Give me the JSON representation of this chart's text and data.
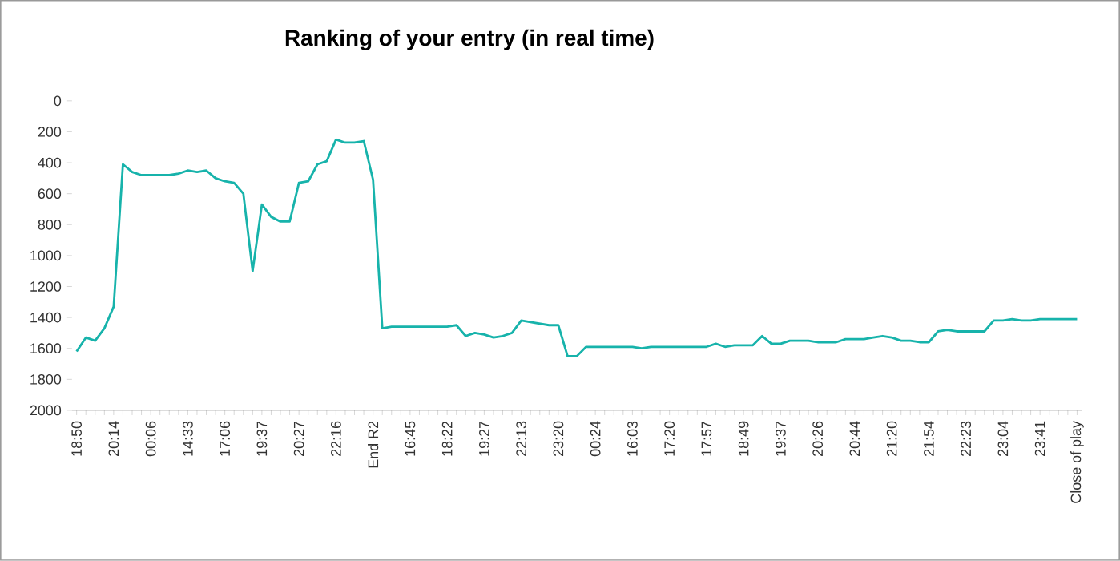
{
  "chart_data": {
    "type": "line",
    "title": "Ranking of your entry (in real time)",
    "categories": [
      "18:50",
      null,
      null,
      null,
      "20:14",
      null,
      null,
      null,
      "00:06",
      null,
      null,
      null,
      "14:33",
      null,
      null,
      null,
      "17:06",
      null,
      null,
      null,
      "19:37",
      null,
      null,
      null,
      "20:27",
      null,
      null,
      null,
      "22:16",
      null,
      null,
      null,
      "End R2",
      null,
      null,
      null,
      "16:45",
      null,
      null,
      null,
      "18:22",
      null,
      null,
      null,
      "19:27",
      null,
      null,
      null,
      "22:13",
      null,
      null,
      null,
      "23:20",
      null,
      null,
      null,
      "00:24",
      null,
      null,
      null,
      "16:03",
      null,
      null,
      null,
      "17:20",
      null,
      null,
      null,
      "17:57",
      null,
      null,
      null,
      "18:49",
      null,
      null,
      null,
      "19:37",
      null,
      null,
      null,
      "20:26",
      null,
      null,
      null,
      "20:44",
      null,
      null,
      null,
      "21:20",
      null,
      null,
      null,
      "21:54",
      null,
      null,
      null,
      "22:23",
      null,
      null,
      null,
      "23:04",
      null,
      null,
      null,
      "23:41",
      null,
      null,
      null,
      "Close of play"
    ],
    "values": [
      1620,
      1530,
      1550,
      1470,
      1330,
      410,
      460,
      480,
      480,
      480,
      480,
      470,
      450,
      460,
      450,
      500,
      520,
      530,
      600,
      1100,
      670,
      750,
      780,
      780,
      530,
      520,
      410,
      390,
      250,
      270,
      270,
      260,
      510,
      1470,
      1460,
      1460,
      1460,
      1460,
      1460,
      1460,
      1460,
      1450,
      1520,
      1500,
      1510,
      1530,
      1520,
      1500,
      1420,
      1430,
      1440,
      1450,
      1450,
      1650,
      1650,
      1590,
      1590,
      1590,
      1590,
      1590,
      1590,
      1600,
      1590,
      1590,
      1590,
      1590,
      1590,
      1590,
      1590,
      1570,
      1590,
      1580,
      1580,
      1580,
      1520,
      1570,
      1570,
      1550,
      1550,
      1550,
      1560,
      1560,
      1560,
      1540,
      1540,
      1540,
      1530,
      1520,
      1530,
      1550,
      1550,
      1560,
      1560,
      1490,
      1480,
      1490,
      1490,
      1490,
      1490,
      1420,
      1420,
      1410,
      1420,
      1420,
      1410,
      1410,
      1410,
      1410,
      1410
    ],
    "color": "#17b3ab",
    "ylim": [
      2000,
      0
    ],
    "yticks": [
      0,
      200,
      400,
      600,
      800,
      1000,
      1200,
      1400,
      1600,
      1800,
      2000
    ]
  }
}
